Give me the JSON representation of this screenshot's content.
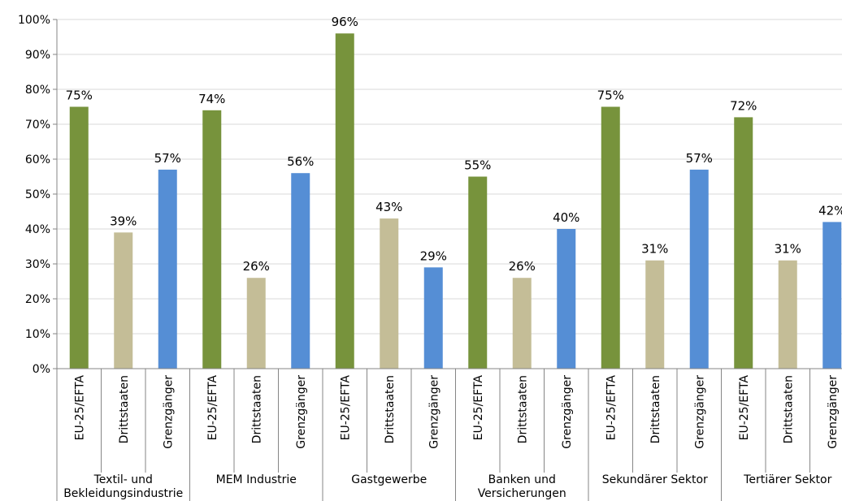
{
  "chart_data": {
    "type": "bar",
    "title": "",
    "xlabel": "",
    "ylabel": "",
    "ylim": [
      0,
      1
    ],
    "yticks": [
      "0%",
      "10%",
      "20%",
      "30%",
      "40%",
      "50%",
      "60%",
      "70%",
      "80%",
      "90%",
      "100%"
    ],
    "grid": true,
    "legend": "none",
    "colors": {
      "EU-25/EFTA": "#77933c",
      "Drittstaaten": "#c4bd97",
      "Grenzgänger": "#558ed5"
    },
    "groups": [
      {
        "label": "Textil- und Bekleidungsindustrie",
        "label_lines": [
          "Textil- und",
          "Bekleidungsindustrie"
        ],
        "bars": [
          {
            "category": "EU-25/EFTA",
            "value": 0.75,
            "label": "75%"
          },
          {
            "category": "Drittstaaten",
            "value": 0.39,
            "label": "39%"
          },
          {
            "category": "Grenzgänger",
            "value": 0.57,
            "label": "57%"
          }
        ]
      },
      {
        "label": "MEM Industrie",
        "label_lines": [
          "MEM Industrie"
        ],
        "bars": [
          {
            "category": "EU-25/EFTA",
            "value": 0.74,
            "label": "74%"
          },
          {
            "category": "Drittstaaten",
            "value": 0.26,
            "label": "26%"
          },
          {
            "category": "Grenzgänger",
            "value": 0.56,
            "label": "56%"
          }
        ]
      },
      {
        "label": "Gastgewerbe",
        "label_lines": [
          "Gastgewerbe"
        ],
        "bars": [
          {
            "category": "EU-25/EFTA",
            "value": 0.96,
            "label": "96%"
          },
          {
            "category": "Drittstaaten",
            "value": 0.43,
            "label": "43%"
          },
          {
            "category": "Grenzgänger",
            "value": 0.29,
            "label": "29%"
          }
        ]
      },
      {
        "label": "Banken und Versicherungen",
        "label_lines": [
          "Banken und",
          "Versicherungen"
        ],
        "bars": [
          {
            "category": "EU-25/EFTA",
            "value": 0.55,
            "label": "55%"
          },
          {
            "category": "Drittstaaten",
            "value": 0.26,
            "label": "26%"
          },
          {
            "category": "Grenzgänger",
            "value": 0.4,
            "label": "40%"
          }
        ]
      },
      {
        "label": "Sekundärer Sektor",
        "label_lines": [
          "Sekundärer Sektor"
        ],
        "bars": [
          {
            "category": "EU-25/EFTA",
            "value": 0.75,
            "label": "75%"
          },
          {
            "category": "Drittstaaten",
            "value": 0.31,
            "label": "31%"
          },
          {
            "category": "Grenzgänger",
            "value": 0.57,
            "label": "57%"
          }
        ]
      },
      {
        "label": "Tertiärer Sektor",
        "label_lines": [
          "Tertiärer Sektor"
        ],
        "bars": [
          {
            "category": "EU-25/EFTA",
            "value": 0.72,
            "label": "72%"
          },
          {
            "category": "Drittstaaten",
            "value": 0.31,
            "label": "31%"
          },
          {
            "category": "Grenzgänger",
            "value": 0.42,
            "label": "42%"
          }
        ]
      }
    ]
  }
}
